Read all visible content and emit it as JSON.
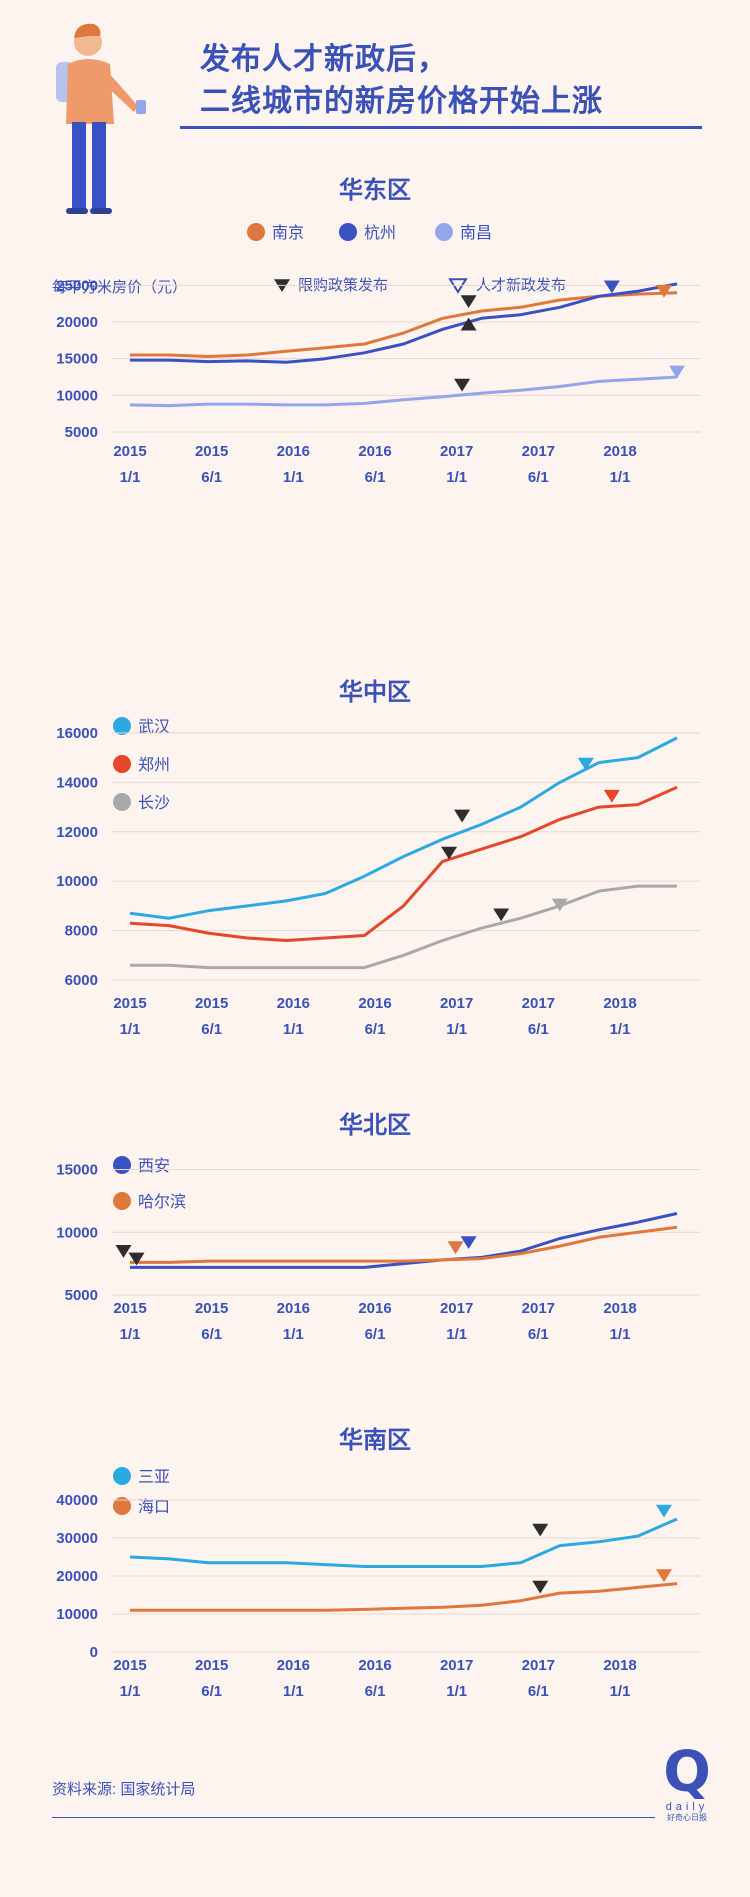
{
  "header": {
    "title_line1": "发布人才新政后，",
    "title_line2": "二线城市的新房价格开始上涨"
  },
  "legend_markers": {
    "restriction": "限购政策发布",
    "talent": "人才新政发布"
  },
  "source": "资料来源: 国家统计局",
  "logo": {
    "letter": "Q",
    "word": "daily",
    "sub": "好奇心日报"
  },
  "colors": {
    "accent": "#3a51b8",
    "background": "#fdf4ef",
    "restriction_marker": "#2d2d2d"
  },
  "chart_data": [
    {
      "type": "line",
      "title": "华东区",
      "ylabel": "每平方米房价（元）",
      "x_ticks": [
        "2015\n1/1",
        "2015\n6/1",
        "2016\n1/1",
        "2016\n6/1",
        "2017\n1/1",
        "2017\n6/1",
        "2018\n1/1"
      ],
      "x_range": [
        0,
        43
      ],
      "ylim": [
        5000,
        26000
      ],
      "y_ticks": [
        5000,
        10000,
        15000,
        20000,
        25000
      ],
      "series": [
        {
          "name": "南京",
          "color": "#e0773d",
          "x": [
            0,
            3,
            6,
            9,
            12,
            15,
            18,
            21,
            24,
            27,
            30,
            33,
            36,
            39,
            42
          ],
          "values": [
            15500,
            15500,
            15300,
            15500,
            16000,
            16500,
            17000,
            18500,
            20500,
            21500,
            22000,
            23000,
            23500,
            23800,
            24000
          ]
        },
        {
          "name": "杭州",
          "color": "#3a51c4",
          "x": [
            0,
            3,
            6,
            9,
            12,
            15,
            18,
            21,
            24,
            27,
            30,
            33,
            36,
            39,
            42
          ],
          "values": [
            14800,
            14800,
            14600,
            14700,
            14500,
            15000,
            15800,
            17000,
            19000,
            20500,
            21000,
            22000,
            23500,
            24200,
            25200
          ]
        },
        {
          "name": "南昌",
          "color": "#93a6ea",
          "x": [
            0,
            3,
            6,
            9,
            12,
            15,
            18,
            21,
            24,
            27,
            30,
            33,
            36,
            39,
            42
          ],
          "values": [
            8700,
            8600,
            8800,
            8800,
            8700,
            8700,
            8900,
            9400,
            9800,
            10300,
            10700,
            11200,
            11900,
            12200,
            12500
          ]
        }
      ],
      "markers": [
        {
          "kind": "restriction",
          "x": 26,
          "y": 23000,
          "dir": "down"
        },
        {
          "kind": "restriction",
          "x": 26,
          "y": 19500,
          "dir": "up"
        },
        {
          "kind": "restriction",
          "x": 25.5,
          "y": 11600,
          "dir": "down"
        },
        {
          "kind": "talent",
          "x": 37,
          "y": 25000,
          "dir": "down",
          "color": "#3a51c4"
        },
        {
          "kind": "talent",
          "x": 41,
          "y": 24400,
          "dir": "down",
          "color": "#e0773d"
        },
        {
          "kind": "talent",
          "x": 42,
          "y": 13400,
          "dir": "down",
          "color": "#93a6ea"
        }
      ]
    },
    {
      "type": "line",
      "title": "华中区",
      "x_ticks": [
        "2015\n1/1",
        "2015\n6/1",
        "2016\n1/1",
        "2016\n6/1",
        "2017\n1/1",
        "2017\n6/1",
        "2018\n1/1"
      ],
      "x_range": [
        0,
        43
      ],
      "ylim": [
        6000,
        16200
      ],
      "y_ticks": [
        6000,
        8000,
        10000,
        12000,
        14000,
        16000
      ],
      "series": [
        {
          "name": "武汉",
          "color": "#2ca9e1",
          "x": [
            0,
            3,
            6,
            9,
            12,
            15,
            18,
            21,
            24,
            27,
            30,
            33,
            36,
            39,
            42
          ],
          "values": [
            8700,
            8500,
            8800,
            9000,
            9200,
            9500,
            10200,
            11000,
            11700,
            12300,
            13000,
            14000,
            14800,
            15000,
            15800
          ]
        },
        {
          "name": "郑州",
          "color": "#e5462c",
          "x": [
            0,
            3,
            6,
            9,
            12,
            15,
            18,
            21,
            24,
            27,
            30,
            33,
            36,
            39,
            42
          ],
          "values": [
            8300,
            8200,
            7900,
            7700,
            7600,
            7700,
            7800,
            9000,
            10800,
            11300,
            11800,
            12500,
            13000,
            13100,
            13800
          ]
        },
        {
          "name": "长沙",
          "color": "#a9a9a9",
          "x": [
            0,
            3,
            6,
            9,
            12,
            15,
            18,
            21,
            24,
            27,
            30,
            33,
            36,
            39,
            42
          ],
          "values": [
            6600,
            6600,
            6500,
            6500,
            6500,
            6500,
            6500,
            7000,
            7600,
            8100,
            8500,
            9000,
            9600,
            9800,
            9800
          ]
        }
      ],
      "markers": [
        {
          "kind": "restriction",
          "x": 25.5,
          "y": 12700,
          "dir": "down"
        },
        {
          "kind": "restriction",
          "x": 24.5,
          "y": 11200,
          "dir": "down"
        },
        {
          "kind": "restriction",
          "x": 28.5,
          "y": 8700,
          "dir": "down"
        },
        {
          "kind": "talent",
          "x": 33,
          "y": 9100,
          "dir": "down",
          "color": "#a9a9a9"
        },
        {
          "kind": "talent",
          "x": 35,
          "y": 14800,
          "dir": "down",
          "color": "#2ca9e1"
        },
        {
          "kind": "talent",
          "x": 37,
          "y": 13500,
          "dir": "down",
          "color": "#e5462c"
        }
      ]
    },
    {
      "type": "line",
      "title": "华北区",
      "x_ticks": [
        "2015\n1/1",
        "2015\n6/1",
        "2016\n1/1",
        "2016\n6/1",
        "2017\n1/1",
        "2017\n6/1",
        "2018\n1/1"
      ],
      "x_range": [
        0,
        43
      ],
      "ylim": [
        5000,
        16000
      ],
      "y_ticks": [
        5000,
        10000,
        15000
      ],
      "series": [
        {
          "name": "西安",
          "color": "#3a51c4",
          "x": [
            0,
            3,
            6,
            9,
            12,
            15,
            18,
            21,
            24,
            27,
            30,
            33,
            36,
            39,
            42
          ],
          "values": [
            7200,
            7200,
            7200,
            7200,
            7200,
            7200,
            7200,
            7500,
            7800,
            8000,
            8500,
            9500,
            10200,
            10800,
            11500
          ]
        },
        {
          "name": "哈尔滨",
          "color": "#e0773d",
          "x": [
            0,
            3,
            6,
            9,
            12,
            15,
            18,
            21,
            24,
            27,
            30,
            33,
            36,
            39,
            42
          ],
          "values": [
            7600,
            7600,
            7700,
            7700,
            7700,
            7700,
            7700,
            7700,
            7800,
            7900,
            8300,
            8900,
            9600,
            10000,
            10400
          ]
        }
      ],
      "markers": [
        {
          "kind": "restriction",
          "x": -0.5,
          "y": 8600,
          "dir": "down"
        },
        {
          "kind": "restriction",
          "x": 0.5,
          "y": 8000,
          "dir": "down"
        },
        {
          "kind": "talent",
          "x": 25,
          "y": 8900,
          "dir": "down",
          "color": "#e0773d"
        },
        {
          "kind": "talent",
          "x": 26,
          "y": 9300,
          "dir": "down",
          "color": "#3a51c4"
        }
      ]
    },
    {
      "type": "line",
      "title": "华南区",
      "x_ticks": [
        "2015\n1/1",
        "2015\n6/1",
        "2016\n1/1",
        "2016\n6/1",
        "2017\n1/1",
        "2017\n6/1",
        "2018\n1/1"
      ],
      "x_range": [
        0,
        43
      ],
      "ylim": [
        0,
        40000
      ],
      "y_ticks": [
        0,
        10000,
        20000,
        30000,
        40000
      ],
      "series": [
        {
          "name": "三亚",
          "color": "#2ca9e1",
          "x": [
            0,
            3,
            6,
            9,
            12,
            15,
            18,
            21,
            24,
            27,
            30,
            33,
            36,
            39,
            42
          ],
          "values": [
            25000,
            24500,
            23500,
            23500,
            23500,
            23000,
            22500,
            22500,
            22500,
            22500,
            23500,
            28000,
            29000,
            30500,
            35000
          ]
        },
        {
          "name": "海口",
          "color": "#e0773d",
          "x": [
            0,
            3,
            6,
            9,
            12,
            15,
            18,
            21,
            24,
            27,
            30,
            33,
            36,
            39,
            42
          ],
          "values": [
            11000,
            11000,
            11000,
            11000,
            11000,
            11000,
            11200,
            11500,
            11800,
            12300,
            13500,
            15500,
            16000,
            17000,
            18000
          ]
        }
      ],
      "markers": [
        {
          "kind": "restriction",
          "x": 31.5,
          "y": 32500,
          "dir": "down"
        },
        {
          "kind": "restriction",
          "x": 31.5,
          "y": 17500,
          "dir": "down"
        },
        {
          "kind": "talent",
          "x": 41,
          "y": 37500,
          "dir": "down",
          "color": "#2ca9e1"
        },
        {
          "kind": "talent",
          "x": 41,
          "y": 20500,
          "dir": "down",
          "color": "#e0773d"
        }
      ]
    }
  ]
}
